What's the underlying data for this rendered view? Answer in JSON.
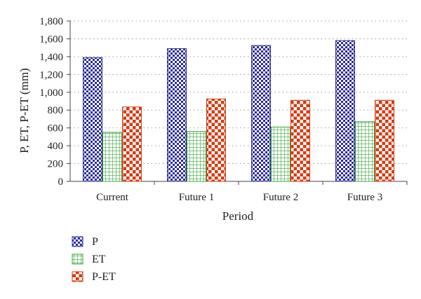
{
  "chart_data": {
    "type": "bar",
    "title": "",
    "xlabel": "Period",
    "ylabel": "P, ET, P-ET (mm)",
    "categories": [
      "Current",
      "Future 1",
      "Future 2",
      "Future 3"
    ],
    "series": [
      {
        "name": "P",
        "values": [
          1390,
          1490,
          1525,
          1580
        ],
        "color": "#2b2b9c",
        "pattern": "checker"
      },
      {
        "name": "ET",
        "values": [
          550,
          560,
          610,
          670
        ],
        "color": "#3aa63a",
        "pattern": "grid"
      },
      {
        "name": "P-ET",
        "values": [
          835,
          925,
          910,
          910
        ],
        "color": "#d63a12",
        "pattern": "checker-large"
      }
    ],
    "ylim": [
      0,
      1800
    ],
    "yticks": [
      0,
      200,
      400,
      600,
      800,
      1000,
      1200,
      1400,
      1600,
      1800
    ],
    "ytick_labels": [
      "0",
      "200",
      "400",
      "600",
      "800",
      "1,000",
      "1,200",
      "1,400",
      "1,600",
      "1,800"
    ],
    "grid": "horizontal-dotted",
    "legend_position": "bottom-left"
  }
}
